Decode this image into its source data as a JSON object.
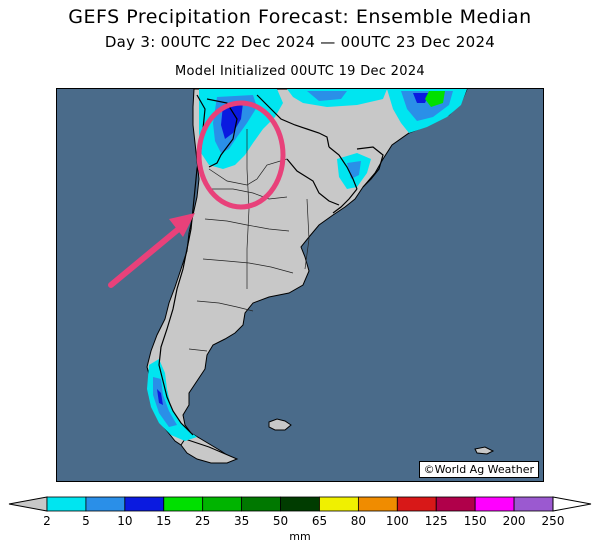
{
  "header": {
    "title": "GEFS Precipitation Forecast: Ensemble Median",
    "valid_period": "Day 3: 00UTC 22 Dec 2024 — 00UTC 23 Dec 2024",
    "initialized": "Model Initialized 00UTC 19 Dec 2024"
  },
  "map": {
    "ocean_color": "#4a6b8a",
    "land_color": "#c8c8c8",
    "credit": "©World Ag Weather",
    "annotation_color": "#e8417a"
  },
  "legend": {
    "units": "mm",
    "ticks": [
      "2",
      "5",
      "10",
      "15",
      "25",
      "35",
      "50",
      "65",
      "80",
      "100",
      "125",
      "150",
      "200",
      "250"
    ],
    "colors": [
      "#00e5f0",
      "#2a8fe8",
      "#0a1ae0",
      "#00e000",
      "#00b400",
      "#007800",
      "#003c00",
      "#f0f000",
      "#f08c00",
      "#d81818",
      "#b0004a",
      "#ff00ff",
      "#9b59d0"
    ]
  }
}
